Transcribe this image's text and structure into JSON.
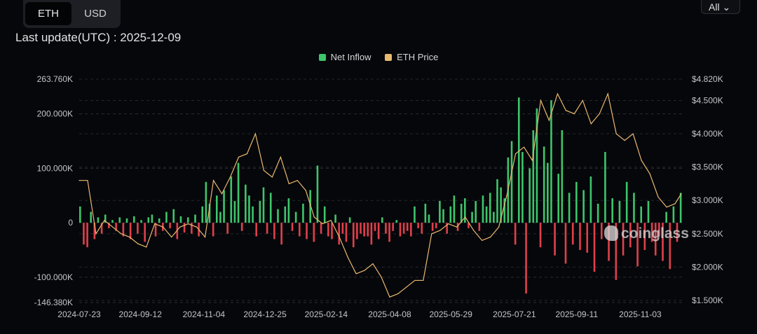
{
  "toggle": {
    "options": [
      "ETH",
      "USD"
    ],
    "selected": "ETH"
  },
  "last_update": "Last update(UTC) : 2025-12-09",
  "range_select": {
    "value": "All",
    "icon": "chevron-down-icon"
  },
  "watermark": "coinglass",
  "colors": {
    "inflow_pos": "#3ec56b",
    "inflow_neg": "#e0404b",
    "price": "#e9b96e",
    "bg": "#06070b"
  },
  "chart_data": {
    "type": "bar+line",
    "legend": [
      "Net Inflow",
      "ETH Price"
    ],
    "legend_position": "top-center",
    "grid": true,
    "left_axis": {
      "ticks": [
        263.76,
        200,
        100,
        0,
        -100,
        -146.38
      ],
      "tick_labels": [
        "263.760K",
        "200.000K",
        "100.000K",
        "0",
        "-100.000K",
        "-146.380K"
      ],
      "range": [
        -146.38,
        263.76
      ],
      "unit": "K ETH"
    },
    "right_axis": {
      "ticks": [
        4820,
        4500,
        4000,
        3500,
        3000,
        2500,
        2000,
        1500
      ],
      "tick_labels": [
        "$4.820K",
        "$4.500K",
        "$4.000K",
        "$3.500K",
        "$3.000K",
        "$2.500K",
        "$2.000K",
        "$1.500K"
      ],
      "range": [
        1500,
        4820
      ]
    },
    "x_axis": {
      "start": "2024-07-23",
      "end": "2025-12-09",
      "tick_labels": [
        "2024-07-23",
        "2024-09-12",
        "2024-11-04",
        "2024-12-25",
        "2025-02-14",
        "2025-04-08",
        "2025-05-29",
        "2025-07-21",
        "2025-09-11",
        "2025-11-03"
      ]
    },
    "series": [
      {
        "name": "Net Inflow",
        "type": "bar",
        "interval_days": 3,
        "values": [
          30,
          -40,
          -45,
          20,
          -30,
          10,
          -20,
          15,
          -10,
          5,
          -15,
          10,
          -25,
          8,
          -30,
          12,
          -20,
          5,
          -35,
          10,
          15,
          -25,
          8,
          -15,
          20,
          -10,
          25,
          -30,
          12,
          -18,
          10,
          -20,
          15,
          -25,
          30,
          75,
          35,
          -25,
          50,
          20,
          60,
          -20,
          85,
          40,
          110,
          -15,
          70,
          50,
          30,
          -25,
          40,
          65,
          -20,
          55,
          -30,
          25,
          -40,
          30,
          45,
          -15,
          20,
          -25,
          35,
          -30,
          60,
          -35,
          105,
          -20,
          30,
          -25,
          -30,
          15,
          -40,
          -20,
          -35,
          10,
          -45,
          -30,
          -20,
          -25,
          -25,
          -40,
          -15,
          -30,
          10,
          -20,
          -35,
          -15,
          5,
          -25,
          -20,
          -15,
          -25,
          30,
          -10,
          -20,
          35,
          15,
          -15,
          -10,
          40,
          25,
          -20,
          30,
          50,
          -15,
          35,
          45,
          -10,
          20,
          40,
          -15,
          50,
          30,
          55,
          20,
          80,
          65,
          45,
          120,
          150,
          -40,
          230,
          130,
          -130,
          100,
          170,
          210,
          -45,
          140,
          110,
          225,
          -60,
          90,
          170,
          -75,
          55,
          -40,
          75,
          -50,
          60,
          -55,
          85,
          -90,
          35,
          -30,
          130,
          -70,
          45,
          -105,
          40,
          -60,
          75,
          -45,
          55,
          -80,
          30,
          -50,
          40,
          -35,
          -60,
          -25,
          -70,
          20,
          -85,
          30,
          -35,
          55
        ]
      },
      {
        "name": "ETH Price",
        "type": "line",
        "interval_days": 7,
        "values": [
          3300,
          3300,
          2500,
          2700,
          2600,
          2500,
          2450,
          2350,
          2300,
          2650,
          2600,
          2450,
          2600,
          2650,
          2600,
          2450,
          3300,
          3100,
          3350,
          3650,
          3700,
          4000,
          3450,
          3350,
          3650,
          3250,
          3300,
          3150,
          2750,
          2650,
          2700,
          2450,
          2150,
          1900,
          1950,
          2050,
          1850,
          1550,
          1600,
          1700,
          1800,
          1800,
          2500,
          2550,
          2650,
          2600,
          2750,
          2550,
          2400,
          2450,
          2600,
          3100,
          3700,
          3800,
          3600,
          4500,
          4200,
          4600,
          4350,
          4300,
          4500,
          4150,
          4300,
          4600,
          4000,
          3900,
          4000,
          3600,
          3400,
          3050,
          2900,
          2950,
          3100
        ]
      }
    ]
  }
}
